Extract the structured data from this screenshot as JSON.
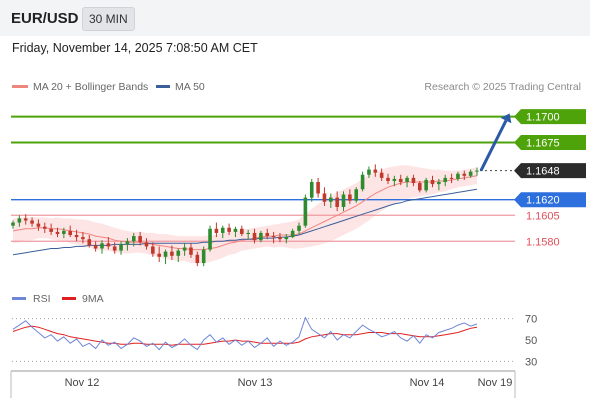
{
  "header": {
    "pair": "EUR/USD",
    "timeframe": "30 MIN"
  },
  "datetime": "Friday, November 14, 2025 7:08:50 AM CET",
  "legend": {
    "ma20": "MA 20 + Bollinger Bands",
    "ma50": "MA 50",
    "rsi": "RSI",
    "rsi_ma": "9MA"
  },
  "credit": "Research © 2025 Trading Central",
  "colors": {
    "up": "#2e8b2e",
    "down": "#c0392b",
    "ma20": "#f0857f",
    "band_fill": "#fde0e0",
    "ma50": "#3b5f9a",
    "green_level": "#4ea20a",
    "blue_level": "#2d6fdc",
    "red_level": "#ee9aa0",
    "arrow": "#2a5aa6",
    "rsi": "#6f86d6",
    "rsi_ma": "#e02020"
  },
  "chart_data": [
    {
      "type": "candlestick",
      "title": "EUR/USD",
      "ylim": [
        1.1535,
        1.1715
      ],
      "x_ticks": [
        "Nov 12",
        "Nov 13",
        "Nov 14",
        "Nov 19"
      ],
      "levels": [
        {
          "value": 1.17,
          "label": "1.1700",
          "style": "green-target"
        },
        {
          "value": 1.1675,
          "label": "1.1675",
          "style": "green-target"
        },
        {
          "value": 1.1648,
          "label": "1.1648",
          "style": "last-price"
        },
        {
          "value": 1.162,
          "label": "1.1620",
          "style": "pivot"
        },
        {
          "value": 1.1605,
          "label": "1.1605",
          "style": "support"
        },
        {
          "value": 1.158,
          "label": "1.1580",
          "style": "support"
        }
      ],
      "candles": [
        [
          1.1595,
          1.16,
          1.1592,
          1.1598
        ],
        [
          1.1598,
          1.1605,
          1.1594,
          1.1602
        ],
        [
          1.1602,
          1.1606,
          1.1596,
          1.16
        ],
        [
          1.16,
          1.1603,
          1.1594,
          1.1597
        ],
        [
          1.1597,
          1.1601,
          1.159,
          1.1594
        ],
        [
          1.1594,
          1.1598,
          1.1588,
          1.1592
        ],
        [
          1.1592,
          1.1597,
          1.1586,
          1.1589
        ],
        [
          1.1589,
          1.1593,
          1.1584,
          1.1587
        ],
        [
          1.1587,
          1.1593,
          1.1583,
          1.159
        ],
        [
          1.159,
          1.1595,
          1.1584,
          1.1586
        ],
        [
          1.1586,
          1.1591,
          1.158,
          1.1584
        ],
        [
          1.1584,
          1.1589,
          1.1578,
          1.1582
        ],
        [
          1.1582,
          1.1586,
          1.1574,
          1.1576
        ],
        [
          1.1576,
          1.158,
          1.157,
          1.1573
        ],
        [
          1.1573,
          1.1581,
          1.1568,
          1.1578
        ],
        [
          1.1578,
          1.1584,
          1.1572,
          1.1575
        ],
        [
          1.1575,
          1.1579,
          1.1568,
          1.1571
        ],
        [
          1.1571,
          1.158,
          1.1567,
          1.1577
        ],
        [
          1.1577,
          1.1583,
          1.1571,
          1.158
        ],
        [
          1.158,
          1.1588,
          1.1575,
          1.1585
        ],
        [
          1.1585,
          1.1589,
          1.1576,
          1.1579
        ],
        [
          1.1579,
          1.1583,
          1.1572,
          1.1575
        ],
        [
          1.1575,
          1.1579,
          1.1565,
          1.1568
        ],
        [
          1.1568,
          1.1575,
          1.156,
          1.1565
        ],
        [
          1.1565,
          1.1572,
          1.1558,
          1.157
        ],
        [
          1.157,
          1.1576,
          1.1562,
          1.1566
        ],
        [
          1.1566,
          1.1573,
          1.156,
          1.1571
        ],
        [
          1.1571,
          1.1578,
          1.1566,
          1.1574
        ],
        [
          1.1574,
          1.1578,
          1.1564,
          1.1567
        ],
        [
          1.1567,
          1.157,
          1.1556,
          1.1559
        ],
        [
          1.1559,
          1.1575,
          1.1556,
          1.1572
        ],
        [
          1.1572,
          1.1595,
          1.157,
          1.1592
        ],
        [
          1.1592,
          1.1598,
          1.1584,
          1.1588
        ],
        [
          1.1588,
          1.1595,
          1.1583,
          1.1593
        ],
        [
          1.1593,
          1.1597,
          1.1586,
          1.1589
        ],
        [
          1.1589,
          1.1594,
          1.1584,
          1.1592
        ],
        [
          1.1592,
          1.1595,
          1.1585,
          1.1587
        ],
        [
          1.1587,
          1.1591,
          1.1582,
          1.1588
        ],
        [
          1.1588,
          1.1592,
          1.1578,
          1.1581
        ],
        [
          1.1581,
          1.159,
          1.1579,
          1.1588
        ],
        [
          1.1588,
          1.1592,
          1.1582,
          1.1585
        ],
        [
          1.1585,
          1.1589,
          1.1578,
          1.1584
        ],
        [
          1.1584,
          1.1588,
          1.1579,
          1.1582
        ],
        [
          1.1582,
          1.1587,
          1.1578,
          1.1584
        ],
        [
          1.1584,
          1.1592,
          1.1583,
          1.159
        ],
        [
          1.159,
          1.1598,
          1.1587,
          1.1595
        ],
        [
          1.1595,
          1.1625,
          1.1593,
          1.1622
        ],
        [
          1.1622,
          1.164,
          1.1618,
          1.1637
        ],
        [
          1.1637,
          1.1641,
          1.1622,
          1.1626
        ],
        [
          1.1626,
          1.1632,
          1.1614,
          1.1618
        ],
        [
          1.1618,
          1.1626,
          1.1612,
          1.1622
        ],
        [
          1.1622,
          1.1628,
          1.1609,
          1.1613
        ],
        [
          1.1613,
          1.1628,
          1.1609,
          1.1625
        ],
        [
          1.1625,
          1.163,
          1.1616,
          1.1619
        ],
        [
          1.1619,
          1.1632,
          1.1617,
          1.163
        ],
        [
          1.163,
          1.1647,
          1.1628,
          1.1644
        ],
        [
          1.1644,
          1.1652,
          1.1641,
          1.1649
        ],
        [
          1.1649,
          1.1654,
          1.1642,
          1.1646
        ],
        [
          1.1646,
          1.165,
          1.1638,
          1.1641
        ],
        [
          1.1641,
          1.1645,
          1.1635,
          1.1638
        ],
        [
          1.1638,
          1.1643,
          1.1633,
          1.164
        ],
        [
          1.164,
          1.1644,
          1.1634,
          1.1637
        ],
        [
          1.1637,
          1.1643,
          1.1632,
          1.1641
        ],
        [
          1.1641,
          1.1644,
          1.1633,
          1.1636
        ],
        [
          1.1636,
          1.1638,
          1.1627,
          1.1629
        ],
        [
          1.1629,
          1.1641,
          1.1627,
          1.1639
        ],
        [
          1.1639,
          1.1643,
          1.1632,
          1.1635
        ],
        [
          1.1635,
          1.164,
          1.1629,
          1.1637
        ],
        [
          1.1637,
          1.1644,
          1.1633,
          1.1641
        ],
        [
          1.1641,
          1.1645,
          1.1636,
          1.164
        ],
        [
          1.164,
          1.1647,
          1.1638,
          1.1645
        ],
        [
          1.1645,
          1.1648,
          1.1639,
          1.1643
        ],
        [
          1.1643,
          1.1649,
          1.1641,
          1.1647
        ],
        [
          1.1647,
          1.1651,
          1.1643,
          1.1648
        ]
      ],
      "ma20": [
        1.159,
        1.1591,
        1.1592,
        1.1592,
        1.1593,
        1.1593,
        1.1592,
        1.1592,
        1.1591,
        1.159,
        1.1589,
        1.1588,
        1.1587,
        1.1585,
        1.1584,
        1.1583,
        1.1581,
        1.158,
        1.1579,
        1.1579,
        1.1579,
        1.1578,
        1.1577,
        1.1576,
        1.1575,
        1.1574,
        1.1573,
        1.1573,
        1.1572,
        1.1572,
        1.1572,
        1.1573,
        1.1574,
        1.1576,
        1.1578,
        1.1579,
        1.1581,
        1.1582,
        1.1583,
        1.1584,
        1.1585,
        1.1585,
        1.1586,
        1.1586,
        1.1586,
        1.1587,
        1.159,
        1.1593,
        1.1596,
        1.1599,
        1.1602,
        1.1605,
        1.1608,
        1.1611,
        1.1614,
        1.1618,
        1.1622,
        1.1626,
        1.1629,
        1.1632,
        1.1634,
        1.1636,
        1.1637,
        1.1637,
        1.1637,
        1.1637,
        1.1637,
        1.1638,
        1.1638,
        1.1639,
        1.164,
        1.1641,
        1.1642,
        1.1643
      ],
      "ma50": [
        1.1567,
        1.1568,
        1.1569,
        1.157,
        1.1571,
        1.1572,
        1.1573,
        1.1573,
        1.1574,
        1.1574,
        1.1575,
        1.1575,
        1.1576,
        1.1576,
        1.1576,
        1.1576,
        1.1577,
        1.1577,
        1.1577,
        1.1577,
        1.1577,
        1.1578,
        1.1578,
        1.1578,
        1.1578,
        1.1578,
        1.1578,
        1.1578,
        1.1578,
        1.1578,
        1.1579,
        1.1579,
        1.158,
        1.158,
        1.1581,
        1.1581,
        1.1582,
        1.1582,
        1.1582,
        1.1583,
        1.1583,
        1.1583,
        1.1584,
        1.1584,
        1.1585,
        1.1586,
        1.1588,
        1.159,
        1.1592,
        1.1594,
        1.1596,
        1.1598,
        1.16,
        1.1602,
        1.1604,
        1.1606,
        1.1608,
        1.161,
        1.1612,
        1.1614,
        1.1616,
        1.1617,
        1.1619,
        1.162,
        1.1621,
        1.1622,
        1.1623,
        1.1624,
        1.1625,
        1.1626,
        1.1627,
        1.1628,
        1.1629,
        1.163
      ],
      "band_width": [
        0.0012,
        0.0012,
        0.0011,
        0.0011,
        0.001,
        0.001,
        0.001,
        0.0011,
        0.0011,
        0.0012,
        0.0012,
        0.0013,
        0.0013,
        0.0013,
        0.0013,
        0.0012,
        0.0012,
        0.0011,
        0.0011,
        0.001,
        0.001,
        0.001,
        0.0011,
        0.0011,
        0.0012,
        0.0012,
        0.0012,
        0.0012,
        0.0013,
        0.0013,
        0.0013,
        0.0013,
        0.0012,
        0.0012,
        0.0011,
        0.0011,
        0.001,
        0.001,
        0.001,
        0.001,
        0.001,
        0.0011,
        0.0011,
        0.0012,
        0.0013,
        0.0014,
        0.0016,
        0.0018,
        0.002,
        0.0021,
        0.0022,
        0.0022,
        0.0022,
        0.0022,
        0.0022,
        0.0022,
        0.0022,
        0.0021,
        0.002,
        0.0019,
        0.0018,
        0.0017,
        0.0016,
        0.0015,
        0.0014,
        0.0013,
        0.0012,
        0.0011,
        0.001,
        0.0009,
        0.0008,
        0.0008,
        0.0008,
        0.0008
      ],
      "projection": {
        "from": 1.1648,
        "to": 1.17
      }
    },
    {
      "type": "line",
      "title": "RSI",
      "ylim": [
        20,
        80
      ],
      "y_ticks": [
        70,
        50,
        30
      ],
      "series": [
        {
          "name": "RSI",
          "values": [
            60,
            64,
            68,
            62,
            57,
            52,
            55,
            49,
            53,
            47,
            51,
            44,
            47,
            42,
            50,
            45,
            48,
            42,
            46,
            52,
            49,
            44,
            47,
            41,
            48,
            43,
            46,
            51,
            45,
            41,
            50,
            55,
            48,
            52,
            46,
            50,
            45,
            49,
            43,
            47,
            52,
            44,
            49,
            45,
            48,
            53,
            71,
            60,
            56,
            52,
            58,
            50,
            55,
            52,
            58,
            64,
            60,
            57,
            53,
            55,
            58,
            52,
            49,
            54,
            47,
            55,
            52,
            57,
            59,
            61,
            64,
            66,
            63,
            65
          ]
        },
        {
          "name": "9MA",
          "values": [
            58,
            60,
            62,
            63,
            62,
            60,
            58,
            56,
            55,
            53,
            52,
            51,
            50,
            49,
            48,
            47,
            47,
            46,
            46,
            47,
            47,
            46,
            46,
            46,
            46,
            45,
            46,
            46,
            46,
            46,
            46,
            47,
            48,
            49,
            49,
            50,
            49,
            49,
            48,
            47,
            47,
            47,
            47,
            47,
            47,
            48,
            51,
            53,
            54,
            55,
            56,
            56,
            55,
            55,
            55,
            56,
            57,
            57,
            57,
            56,
            56,
            56,
            55,
            54,
            53,
            53,
            53,
            54,
            55,
            56,
            57,
            59,
            61,
            62
          ]
        }
      ]
    }
  ]
}
